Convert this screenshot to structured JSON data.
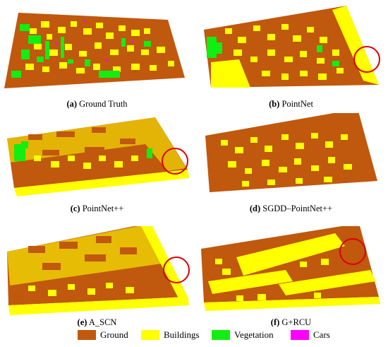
{
  "figure": {
    "panels": [
      {
        "id": "a",
        "letter": "(a)",
        "name": "Ground Truth",
        "circle": false
      },
      {
        "id": "b",
        "letter": "(b)",
        "name": "PointNet",
        "circle": true
      },
      {
        "id": "c",
        "letter": "(c)",
        "name": "PointNet++",
        "circle": true
      },
      {
        "id": "d",
        "letter": "(d)",
        "name": "SGDD–PointNet++",
        "circle": false
      },
      {
        "id": "e",
        "letter": "(e)",
        "name": "A_SCN",
        "circle": true
      },
      {
        "id": "f",
        "letter": "(f)",
        "name": "G+RCU",
        "circle": true
      }
    ],
    "legend": [
      {
        "label": "Ground",
        "color": "#c0580e"
      },
      {
        "label": "Buildings",
        "color": "#ffff00"
      },
      {
        "label": "Vegetation",
        "color": "#11ee11"
      },
      {
        "label": "Cars",
        "color": "#ff00ff"
      }
    ],
    "highlight_color": "#dd0000"
  }
}
